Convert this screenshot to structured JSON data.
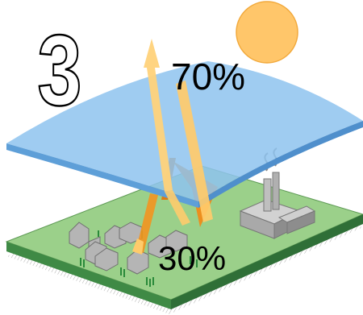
{
  "step_number": "3",
  "labels": {
    "reflected": "70%",
    "absorbed": "30%"
  },
  "icons": {
    "sun": "sun-icon",
    "factory": "factory-icon",
    "houses": "house-icon",
    "trees": "tree-icon"
  },
  "colors": {
    "sun": "#ffc66a",
    "sun_outline": "#f2a93b",
    "atmosphere": "#8ec3ef",
    "atmosphere_edge": "#5e9fd8",
    "ground": "#9bd08a",
    "ground_side": "#3f8a45",
    "arrow_light": "#ffcb6b",
    "arrow_dark": "#f08a18",
    "building": "#b5b5b5"
  }
}
